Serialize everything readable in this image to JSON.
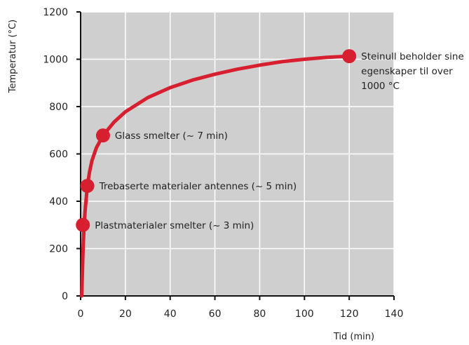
{
  "chart_data": {
    "type": "line",
    "title": "",
    "xlabel": "Tid (min)",
    "ylabel": "Temperatur (°C)",
    "xlim": [
      0,
      140
    ],
    "ylim": [
      0,
      1200
    ],
    "xticks": [
      0,
      20,
      40,
      60,
      80,
      100,
      120,
      140
    ],
    "yticks": [
      0,
      200,
      400,
      600,
      800,
      1000,
      1200
    ],
    "grid": true,
    "background": "#cfcfcf",
    "line_color": "#d71f30",
    "series": [
      {
        "x": [
          0.5,
          1,
          1.5,
          2,
          3,
          4,
          5,
          7,
          10,
          15,
          20,
          30,
          40,
          50,
          60,
          70,
          80,
          90,
          100,
          110,
          120
        ],
        "y": [
          0,
          170,
          290,
          360,
          465,
          525,
          570,
          625,
          678,
          735,
          778,
          838,
          880,
          912,
          937,
          958,
          975,
          990,
          1000,
          1008,
          1013
        ]
      }
    ],
    "annotations": [
      {
        "x": 1,
        "y": 300,
        "lines": [
          "Plastmaterialer smelter (~ 3 min)"
        ]
      },
      {
        "x": 3,
        "y": 465,
        "lines": [
          "Trebaserte materialer antennes (~ 5 min)"
        ]
      },
      {
        "x": 10,
        "y": 678,
        "lines": [
          "Glass smelter (~ 7 min)"
        ]
      },
      {
        "x": 120,
        "y": 1013,
        "lines": [
          "Steinull beholder sine",
          "egenskaper til over",
          "1000 °C"
        ]
      }
    ]
  }
}
